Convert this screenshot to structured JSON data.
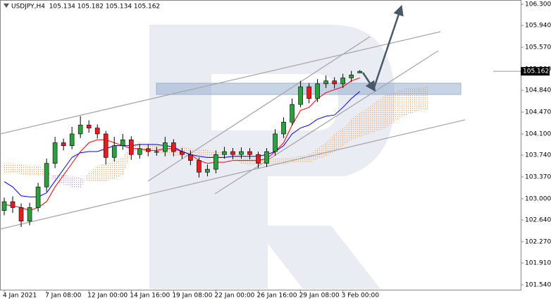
{
  "chart_data": {
    "type": "candlestick",
    "title": "USDJPY,H4  105.134 105.182 105.134 105.162",
    "x": [
      0,
      1,
      2,
      3,
      4,
      5,
      6,
      7,
      8,
      9,
      10,
      11,
      12,
      13,
      14,
      15,
      16,
      17,
      18,
      19,
      20,
      21,
      22,
      23,
      24,
      25,
      26,
      27,
      28,
      29,
      30,
      31,
      32,
      33,
      34,
      35,
      36,
      37,
      38,
      39,
      40,
      41,
      42
    ],
    "open": [
      102.8,
      102.95,
      102.85,
      102.62,
      102.85,
      103.2,
      103.6,
      103.95,
      103.9,
      104.1,
      104.25,
      104.2,
      104.1,
      103.7,
      103.9,
      104.0,
      103.75,
      103.85,
      103.8,
      103.8,
      103.95,
      103.8,
      103.75,
      103.65,
      103.45,
      103.5,
      103.75,
      103.8,
      103.75,
      103.8,
      103.75,
      103.6,
      103.8,
      104.1,
      104.3,
      104.6,
      104.9,
      104.7,
      104.95,
      105.0,
      104.95,
      105.05,
      105.134
    ],
    "high": [
      103.02,
      103.04,
      102.92,
      102.93,
      103.27,
      103.68,
      104.05,
      104.02,
      104.22,
      104.4,
      104.33,
      104.26,
      104.15,
      104.05,
      104.1,
      104.06,
      103.93,
      103.92,
      103.88,
      104.05,
      104.01,
      103.86,
      103.82,
      103.7,
      103.58,
      103.82,
      103.88,
      103.86,
      103.87,
      103.86,
      103.8,
      103.86,
      104.18,
      104.38,
      104.7,
      105.0,
      104.96,
      105.03,
      105.09,
      105.06,
      105.12,
      105.17,
      105.182
    ],
    "low": [
      102.72,
      102.76,
      102.52,
      102.55,
      102.78,
      103.12,
      103.52,
      103.82,
      103.84,
      104.03,
      104.12,
      104.02,
      103.58,
      103.63,
      103.83,
      103.66,
      103.68,
      103.72,
      103.73,
      103.72,
      103.72,
      103.68,
      103.57,
      103.36,
      103.38,
      103.43,
      103.68,
      103.67,
      103.68,
      103.67,
      103.52,
      103.54,
      103.73,
      104.03,
      104.24,
      104.55,
      104.62,
      104.64,
      104.88,
      104.87,
      104.88,
      104.98,
      105.134
    ],
    "close": [
      102.95,
      102.85,
      102.62,
      102.85,
      103.2,
      103.6,
      103.95,
      103.9,
      104.1,
      104.25,
      104.2,
      104.1,
      103.7,
      103.9,
      104.0,
      103.75,
      103.85,
      103.8,
      103.8,
      103.95,
      103.8,
      103.75,
      103.65,
      103.45,
      103.5,
      103.75,
      103.8,
      103.75,
      103.8,
      103.75,
      103.6,
      103.8,
      104.1,
      104.3,
      104.6,
      104.9,
      104.7,
      104.95,
      105.0,
      104.95,
      105.05,
      105.1,
      105.162
    ],
    "up_color": "#2e9e3e",
    "down_color": "#e02020",
    "series": [
      {
        "color": "#ff0000",
        "values": [
          102.9,
          102.88,
          102.85,
          102.8,
          102.85,
          102.95,
          103.2,
          103.4,
          103.6,
          103.8,
          103.95,
          104.0,
          104.0,
          103.95,
          103.9,
          103.85,
          103.85,
          103.82,
          103.82,
          103.85,
          103.85,
          103.8,
          103.75,
          103.65,
          103.6,
          103.62,
          103.62,
          103.65,
          103.65,
          103.65,
          103.65,
          103.68,
          103.8,
          103.95,
          104.25,
          104.5,
          104.55,
          104.7,
          104.8,
          104.85,
          104.9,
          105.0,
          105.05
        ]
      },
      {
        "color": "#0000ff",
        "values": [
          103.29,
          103.2,
          103.05,
          103.03,
          103.03,
          103.1,
          103.3,
          103.5,
          103.7,
          103.78,
          103.8,
          103.8,
          103.85,
          103.9,
          103.9,
          103.9,
          103.92,
          103.92,
          103.92,
          103.9,
          103.88,
          103.8,
          103.75,
          103.72,
          103.7,
          103.7,
          103.7,
          103.72,
          103.72,
          103.72,
          103.72,
          103.75,
          103.8,
          103.9,
          104.1,
          104.2,
          104.25,
          104.35,
          104.4,
          104.42,
          104.55,
          104.7,
          104.82
        ]
      }
    ],
    "cloud": {
      "up_color": "#f4a460",
      "down_color": "#b9a0d8",
      "x": [
        0,
        1,
        2,
        3,
        4,
        5,
        6,
        7,
        8,
        9,
        10,
        11,
        12,
        13,
        14,
        15,
        16,
        17,
        18,
        19,
        20,
        21,
        22,
        23,
        24,
        25,
        26,
        27,
        28,
        29,
        30,
        31,
        32,
        33,
        34,
        35,
        36,
        37,
        38,
        39,
        40,
        41,
        42,
        43,
        44,
        45,
        46,
        47,
        48,
        49,
        50
      ],
      "span_a": [
        103.6,
        103.6,
        103.58,
        103.55,
        103.55,
        103.5,
        103.3,
        103.25,
        103.2,
        103.18,
        103.45,
        103.55,
        103.6,
        103.65,
        103.7,
        103.9,
        103.95,
        103.95,
        103.92,
        103.9,
        103.88,
        103.88,
        103.85,
        103.85,
        103.82,
        103.8,
        103.78,
        103.78,
        103.72,
        103.7,
        103.7,
        103.68,
        103.68,
        103.68,
        103.7,
        103.72,
        103.75,
        103.85,
        103.95,
        104.1,
        104.2,
        104.35,
        104.45,
        104.55,
        104.65,
        104.75,
        104.8,
        104.85,
        104.88,
        104.88,
        104.9
      ],
      "span_b": [
        103.45,
        103.45,
        103.42,
        103.4,
        103.4,
        103.4,
        103.4,
        103.4,
        103.38,
        103.35,
        103.3,
        103.3,
        103.3,
        103.35,
        103.4,
        103.8,
        103.8,
        103.8,
        103.8,
        103.75,
        103.75,
        103.72,
        103.72,
        103.72,
        103.7,
        103.7,
        103.7,
        103.7,
        103.6,
        103.58,
        103.58,
        103.58,
        103.58,
        103.58,
        103.62,
        103.62,
        103.62,
        103.68,
        103.72,
        103.8,
        103.9,
        104.0,
        104.05,
        104.1,
        104.15,
        104.2,
        104.3,
        104.4,
        104.45,
        104.5,
        104.52
      ]
    },
    "xlim": [
      -0.5,
      61
    ],
    "ylim": [
      101.456,
      106.372
    ],
    "xticks": [
      {
        "value": 0,
        "label": "4 Jan 2021"
      },
      {
        "value": 5,
        "label": "7 Jan 08:00"
      },
      {
        "value": 10,
        "label": "12 Jan 00:00"
      },
      {
        "value": 15,
        "label": "14 Jan 16:00"
      },
      {
        "value": 20,
        "label": "19 Jan 08:00"
      },
      {
        "value": 25,
        "label": "22 Jan 00:00"
      },
      {
        "value": 30,
        "label": "26 Jan 16:00"
      },
      {
        "value": 35,
        "label": "29 Jan 08:00"
      },
      {
        "value": 40,
        "label": "3 Feb 00:00"
      }
    ],
    "yticks": [
      {
        "value": 101.54,
        "label": "101.540"
      },
      {
        "value": 101.91,
        "label": "101.910"
      },
      {
        "value": 102.27,
        "label": "102.270"
      },
      {
        "value": 102.64,
        "label": "102.640"
      },
      {
        "value": 103.0,
        "label": "103.000"
      },
      {
        "value": 103.37,
        "label": "103.370"
      },
      {
        "value": 103.74,
        "label": "103.740"
      },
      {
        "value": 104.1,
        "label": "104.100"
      },
      {
        "value": 104.47,
        "label": "104.470"
      },
      {
        "value": 104.84,
        "label": "104.840"
      },
      {
        "value": 105.2,
        "label": "105.200"
      },
      {
        "value": 105.57,
        "label": "105.570"
      },
      {
        "value": 105.94,
        "label": "105.940"
      },
      {
        "value": 106.3,
        "label": "106.300"
      }
    ],
    "last_price": {
      "value": 105.162,
      "label": "105.162"
    }
  }
}
